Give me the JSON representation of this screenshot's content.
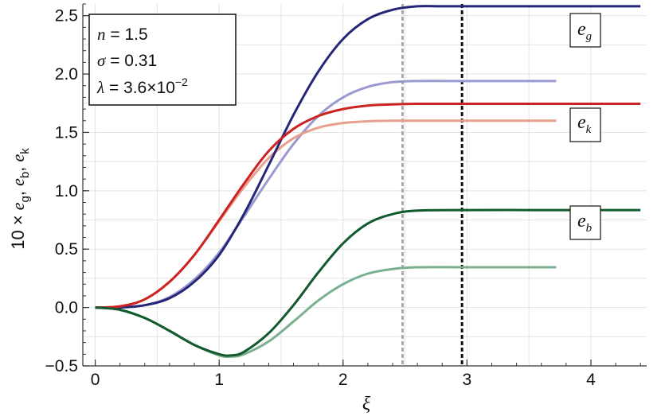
{
  "chart_data": {
    "type": "line",
    "xlabel": "ξ",
    "ylabel": {
      "prefix": "10 × ",
      "terms": [
        {
          "base": "e",
          "sub": "g"
        },
        {
          "base": "e",
          "sub": "b"
        },
        {
          "base": "e",
          "sub": "k"
        }
      ],
      "separator": ", "
    },
    "xlim": [
      -0.1,
      4.45
    ],
    "ylim": [
      -0.5,
      2.6
    ],
    "xticks": [
      0,
      1,
      2,
      3,
      4
    ],
    "xtick_labels": [
      "0",
      "1",
      "2",
      "3",
      "4"
    ],
    "yticks": [
      -0.5,
      0.0,
      0.5,
      1.0,
      1.5,
      2.0,
      2.5
    ],
    "ytick_labels": [
      "−0.5",
      "0.0",
      "0.5",
      "1.0",
      "1.5",
      "2.0",
      "2.5"
    ],
    "grid": true,
    "params_box": {
      "n": {
        "symbol": "n",
        "value": "1.5"
      },
      "sigma": {
        "symbol": "σ",
        "value": "0.31"
      },
      "lambda": {
        "symbol": "λ",
        "value_mantissa": "3.6",
        "times": "×",
        "value_base": "10",
        "value_exp": "−2"
      }
    },
    "vlines": [
      {
        "x": 2.48,
        "color": "#aaaaaa",
        "style": "dashed"
      },
      {
        "x": 2.96,
        "color": "#111111",
        "style": "dashed"
      }
    ],
    "series": [
      {
        "id": "eg_dark",
        "label_base": "e",
        "label_sub": "g",
        "color": "#262678",
        "x": [
          0,
          0.2,
          0.4,
          0.6,
          0.8,
          1.0,
          1.2,
          1.4,
          1.6,
          1.8,
          2.0,
          2.2,
          2.4,
          2.6,
          2.8,
          3.0,
          3.5,
          4.0,
          4.4
        ],
        "y": [
          0.0,
          0.0,
          0.02,
          0.08,
          0.22,
          0.45,
          0.8,
          1.22,
          1.65,
          2.02,
          2.3,
          2.47,
          2.55,
          2.58,
          2.58,
          2.58,
          2.58,
          2.58,
          2.58
        ]
      },
      {
        "id": "eg_light",
        "color": "#9a9ad0",
        "x": [
          0,
          0.2,
          0.4,
          0.6,
          0.8,
          1.0,
          1.2,
          1.4,
          1.6,
          1.8,
          2.0,
          2.2,
          2.4,
          2.6,
          3.0,
          3.5,
          3.72
        ],
        "y": [
          0.0,
          0.0,
          0.02,
          0.09,
          0.24,
          0.47,
          0.78,
          1.1,
          1.4,
          1.64,
          1.8,
          1.89,
          1.93,
          1.94,
          1.94,
          1.94,
          1.94
        ]
      },
      {
        "id": "ek_dark",
        "label_base": "e",
        "label_sub": "k",
        "color": "#cc2222",
        "x": [
          0,
          0.2,
          0.4,
          0.6,
          0.8,
          1.0,
          1.2,
          1.4,
          1.6,
          1.8,
          2.0,
          2.2,
          2.4,
          2.6,
          3.0,
          3.5,
          4.0,
          4.4
        ],
        "y": [
          0.0,
          0.01,
          0.07,
          0.22,
          0.45,
          0.75,
          1.06,
          1.34,
          1.53,
          1.64,
          1.7,
          1.73,
          1.74,
          1.745,
          1.745,
          1.745,
          1.745,
          1.745
        ]
      },
      {
        "id": "ek_light",
        "color": "#e8a08e",
        "x": [
          0,
          0.2,
          0.4,
          0.6,
          0.8,
          1.0,
          1.2,
          1.4,
          1.6,
          1.8,
          2.0,
          2.2,
          2.4,
          2.6,
          3.0,
          3.5,
          3.72
        ],
        "y": [
          0.0,
          0.01,
          0.07,
          0.22,
          0.45,
          0.74,
          1.03,
          1.28,
          1.45,
          1.54,
          1.58,
          1.595,
          1.6,
          1.6,
          1.6,
          1.6,
          1.6
        ]
      },
      {
        "id": "eb_dark",
        "label_base": "e",
        "label_sub": "b",
        "color": "#115a2e",
        "x": [
          0,
          0.2,
          0.4,
          0.6,
          0.8,
          1.0,
          1.1,
          1.2,
          1.4,
          1.6,
          1.8,
          2.0,
          2.2,
          2.4,
          2.6,
          3.0,
          3.5,
          4.0,
          4.4
        ],
        "y": [
          0.0,
          -0.02,
          -0.09,
          -0.2,
          -0.32,
          -0.4,
          -0.41,
          -0.38,
          -0.22,
          0.02,
          0.3,
          0.55,
          0.72,
          0.8,
          0.83,
          0.835,
          0.835,
          0.835,
          0.835
        ]
      },
      {
        "id": "eb_light",
        "color": "#7aaf90",
        "x": [
          0,
          0.2,
          0.4,
          0.6,
          0.8,
          1.0,
          1.1,
          1.2,
          1.4,
          1.6,
          1.8,
          2.0,
          2.2,
          2.4,
          2.6,
          3.0,
          3.5,
          3.72
        ],
        "y": [
          0.0,
          -0.02,
          -0.09,
          -0.2,
          -0.32,
          -0.41,
          -0.42,
          -0.4,
          -0.29,
          -0.12,
          0.06,
          0.2,
          0.29,
          0.33,
          0.345,
          0.345,
          0.345,
          0.345
        ]
      }
    ],
    "series_labels": [
      {
        "series": "eg_dark",
        "base": "e",
        "sub": "g"
      },
      {
        "series": "ek_dark",
        "base": "e",
        "sub": "k"
      },
      {
        "series": "eb_dark",
        "base": "e",
        "sub": "b"
      }
    ]
  }
}
